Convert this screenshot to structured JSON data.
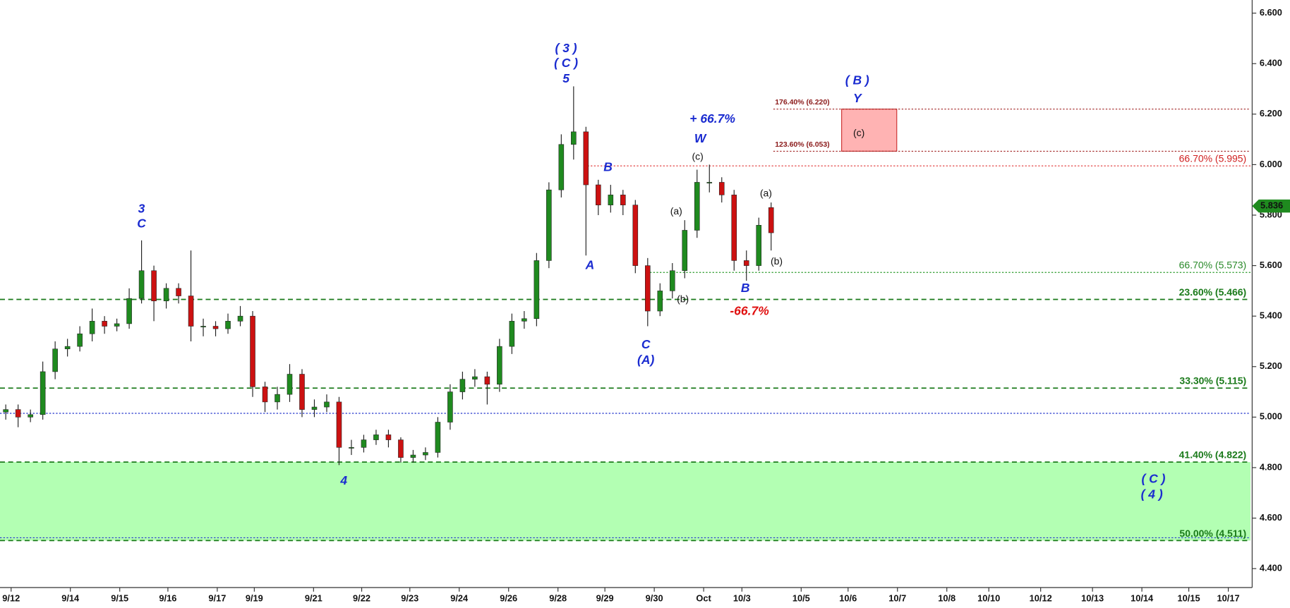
{
  "chart_data": {
    "type": "candlestick",
    "xlim": [
      0,
      101.3
    ],
    "xticks": [
      {
        "value": 0.9,
        "label": "9/12"
      },
      {
        "value": 5.7,
        "label": "9/14"
      },
      {
        "value": 9.7,
        "label": "9/15"
      },
      {
        "value": 13.6,
        "label": "9/16"
      },
      {
        "value": 17.6,
        "label": "9/17"
      },
      {
        "value": 20.6,
        "label": "9/19"
      },
      {
        "value": 25.4,
        "label": "9/21"
      },
      {
        "value": 29.3,
        "label": "9/22"
      },
      {
        "value": 33.2,
        "label": "9/23"
      },
      {
        "value": 37.2,
        "label": "9/24"
      },
      {
        "value": 41.2,
        "label": "9/26"
      },
      {
        "value": 45.2,
        "label": "9/28"
      },
      {
        "value": 49.0,
        "label": "9/29"
      },
      {
        "value": 53.0,
        "label": "9/30"
      },
      {
        "value": 57.0,
        "label": "Oct"
      },
      {
        "value": 60.1,
        "label": "10/3"
      },
      {
        "value": 64.9,
        "label": "10/5"
      },
      {
        "value": 68.7,
        "label": "10/6"
      },
      {
        "value": 72.7,
        "label": "10/7"
      },
      {
        "value": 76.7,
        "label": "10/8"
      },
      {
        "value": 80.1,
        "label": "10/10"
      },
      {
        "value": 84.3,
        "label": "10/12"
      },
      {
        "value": 88.5,
        "label": "10/13"
      },
      {
        "value": 92.5,
        "label": "10/14"
      },
      {
        "value": 96.3,
        "label": "10/15"
      },
      {
        "value": 99.5,
        "label": "10/17"
      }
    ],
    "ylim": [
      4.325,
      6.652
    ],
    "yticks": [
      {
        "value": 4.4,
        "label": "4.400"
      },
      {
        "value": 4.6,
        "label": "4.600"
      },
      {
        "value": 4.8,
        "label": "4.800"
      },
      {
        "value": 5.0,
        "label": "5.000"
      },
      {
        "value": 5.2,
        "label": "5.200"
      },
      {
        "value": 5.4,
        "label": "5.400"
      },
      {
        "value": 5.6,
        "label": "5.600"
      },
      {
        "value": 5.8,
        "label": "5.800"
      },
      {
        "value": 6.0,
        "label": "6.000"
      },
      {
        "value": 6.2,
        "label": "6.200"
      },
      {
        "value": 6.4,
        "label": "6.400"
      },
      {
        "value": 6.6,
        "label": "6.600"
      }
    ],
    "up_color": "#1f8a1f",
    "down_color": "#cc1111",
    "x": [
      0,
      1,
      2,
      3,
      4,
      5,
      6,
      7,
      8,
      9,
      10,
      11,
      12,
      13,
      14,
      15,
      16,
      17,
      18,
      19,
      20,
      21,
      22,
      23,
      24,
      25,
      26,
      27,
      28,
      29,
      30,
      31,
      32,
      33,
      34,
      35,
      36,
      37,
      38,
      39,
      40,
      41,
      42,
      43,
      44,
      45,
      46,
      47,
      48,
      49,
      50,
      51,
      52,
      53,
      54,
      55,
      56,
      57,
      58,
      59,
      60,
      61,
      62
    ],
    "open": [
      5.02,
      5.03,
      5.0,
      5.01,
      5.18,
      5.27,
      5.28,
      5.33,
      5.38,
      5.36,
      5.37,
      5.47,
      5.58,
      5.46,
      5.51,
      5.48,
      5.36,
      5.36,
      5.35,
      5.38,
      5.4,
      5.12,
      5.06,
      5.09,
      5.17,
      5.03,
      5.04,
      5.06,
      4.88,
      4.88,
      4.91,
      4.93,
      4.91,
      4.84,
      4.85,
      4.86,
      4.98,
      5.1,
      5.15,
      5.16,
      5.13,
      5.28,
      5.38,
      5.39,
      5.62,
      5.9,
      6.08,
      6.13,
      5.92,
      5.84,
      5.88,
      5.84,
      5.6,
      5.42,
      5.5,
      5.58,
      5.74,
      5.93,
      5.93,
      5.88,
      5.62,
      5.6,
      5.83
    ],
    "high": [
      5.05,
      5.05,
      5.03,
      5.22,
      5.3,
      5.31,
      5.36,
      5.43,
      5.4,
      5.39,
      5.51,
      5.7,
      5.6,
      5.53,
      5.53,
      5.66,
      5.39,
      5.38,
      5.41,
      5.44,
      5.42,
      5.14,
      5.12,
      5.21,
      5.19,
      5.07,
      5.09,
      5.08,
      4.91,
      4.93,
      4.95,
      4.95,
      4.92,
      4.87,
      4.88,
      5.0,
      5.13,
      5.18,
      5.19,
      5.18,
      5.31,
      5.41,
      5.42,
      5.65,
      5.93,
      6.12,
      6.31,
      6.15,
      5.94,
      5.92,
      5.9,
      5.86,
      5.63,
      5.53,
      5.61,
      5.78,
      5.98,
      6.0,
      5.95,
      5.9,
      5.66,
      5.79,
      5.85
    ],
    "low": [
      4.99,
      4.96,
      4.98,
      4.99,
      5.15,
      5.24,
      5.26,
      5.3,
      5.33,
      5.34,
      5.35,
      5.45,
      5.38,
      5.43,
      5.45,
      5.3,
      5.32,
      5.32,
      5.33,
      5.36,
      5.08,
      5.02,
      5.03,
      5.06,
      5.0,
      5.0,
      5.02,
      4.81,
      4.85,
      4.86,
      4.89,
      4.88,
      4.82,
      4.82,
      4.83,
      4.84,
      4.95,
      5.07,
      5.12,
      5.05,
      5.1,
      5.25,
      5.35,
      5.36,
      5.59,
      5.87,
      6.02,
      5.64,
      5.8,
      5.81,
      5.8,
      5.57,
      5.36,
      5.4,
      5.47,
      5.55,
      5.71,
      5.89,
      5.85,
      5.58,
      5.54,
      5.58,
      5.66
    ],
    "close": [
      5.03,
      5.0,
      5.01,
      5.18,
      5.27,
      5.28,
      5.33,
      5.38,
      5.36,
      5.37,
      5.47,
      5.58,
      5.46,
      5.51,
      5.48,
      5.36,
      5.36,
      5.35,
      5.38,
      5.4,
      5.12,
      5.06,
      5.09,
      5.17,
      5.03,
      5.04,
      5.06,
      4.88,
      4.88,
      4.91,
      4.93,
      4.91,
      4.84,
      4.85,
      4.86,
      4.98,
      5.1,
      5.15,
      5.16,
      5.13,
      5.28,
      5.38,
      5.39,
      5.62,
      5.9,
      6.08,
      6.13,
      5.92,
      5.84,
      5.88,
      5.84,
      5.6,
      5.42,
      5.5,
      5.58,
      5.74,
      5.93,
      5.93,
      5.88,
      5.62,
      5.6,
      5.76,
      5.73
    ],
    "last_price": 5.836,
    "last_price_label": "5.836",
    "zone": [
      4.822,
      4.511
    ],
    "box": [
      6.053,
      6.22
    ],
    "levels": [
      {
        "label": "66.70% (5.995)",
        "value": 5.995
      },
      {
        "label": "176.40% (6.220)",
        "value": 6.22
      },
      {
        "label": "123.60% (6.053)",
        "value": 6.053
      },
      {
        "label": "66.70% (5.573)",
        "value": 5.573
      },
      {
        "label": "23.60% (5.466)",
        "value": 5.466
      },
      {
        "label": "33.30% (5.115)",
        "value": 5.115
      },
      {
        "label": "41.40% (4.822)",
        "value": 4.822
      },
      {
        "label": "50.00% (4.511)",
        "value": 4.511
      }
    ],
    "blue_lines": [
      5.015,
      4.522
    ],
    "annotations": [
      "( 3 )",
      "( C )",
      "5",
      "3",
      "C",
      "4",
      "B",
      "A",
      "C",
      "(A)",
      "(a)",
      "(b)",
      "(c)",
      "+ 66.7%",
      "W",
      "(a)",
      "(b)",
      "B",
      "-66.7%",
      "( B )",
      "Y",
      "(c)",
      "( C )",
      "( 4 )"
    ]
  }
}
